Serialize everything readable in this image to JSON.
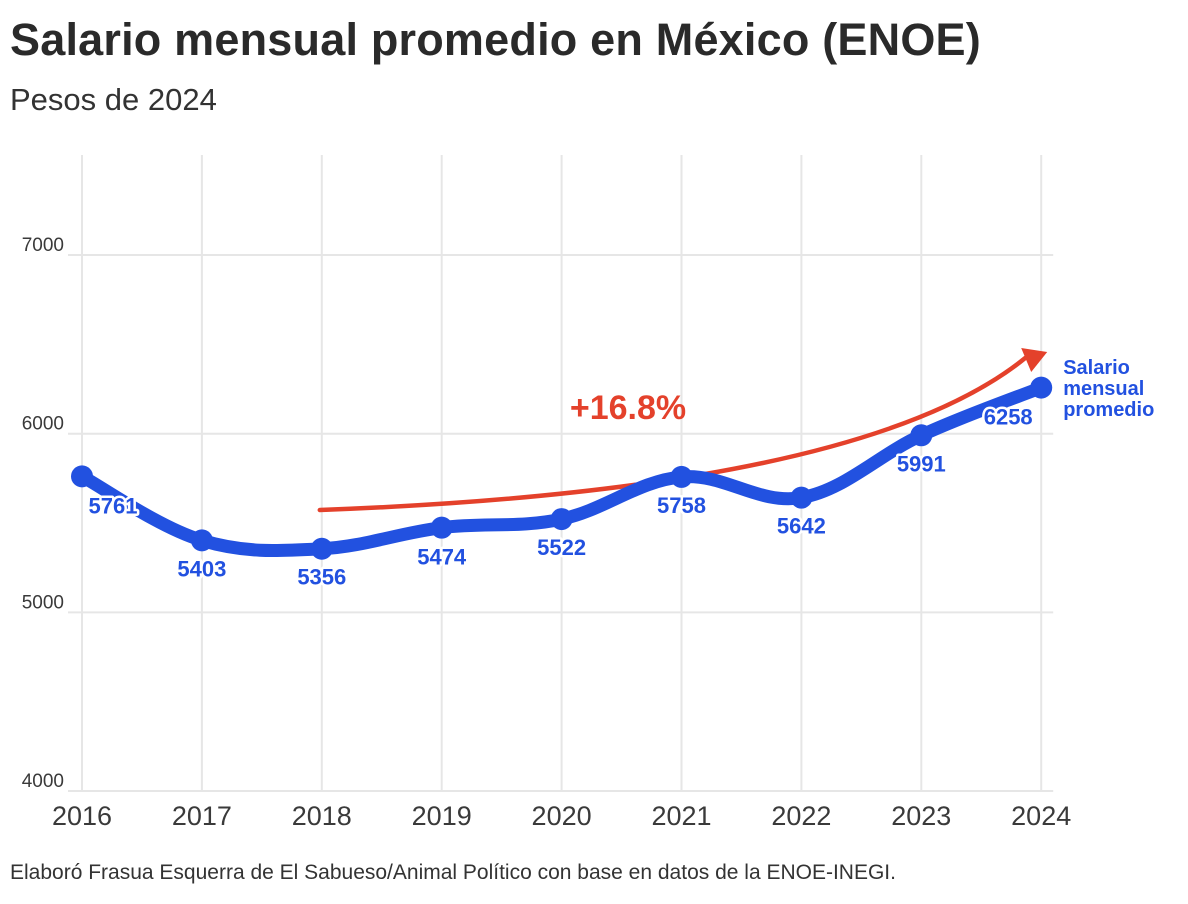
{
  "title": "Salario mensual promedio en México (ENOE)",
  "subtitle": "Pesos de 2024",
  "footer": "Elaboró Frasua Esquerra de El Sabueso/Animal Político con base en datos de la ENOE-INEGI.",
  "colors": {
    "series": "#2251e0",
    "annotation": "#e4412b",
    "grid": "#e6e6e6"
  },
  "chart_data": {
    "type": "line",
    "x": [
      "2016",
      "2017",
      "2018",
      "2019",
      "2020",
      "2021",
      "2022",
      "2023",
      "2024"
    ],
    "series": [
      {
        "name": "Salario mensual promedio",
        "name_lines": [
          "Salario",
          "mensual",
          "promedio"
        ],
        "values": [
          5761,
          5403,
          5356,
          5474,
          5522,
          5758,
          5642,
          5991,
          6258
        ],
        "labels": [
          "5761",
          "5403",
          "5356",
          "5474",
          "5522",
          "5758",
          "5642",
          "5991",
          "6258"
        ]
      }
    ],
    "ylim": [
      4000,
      7560
    ],
    "yticks": [
      4000,
      5000,
      6000,
      7000
    ],
    "ytick_labels": [
      "4000",
      "5000",
      "6000",
      "7000"
    ],
    "grid": true,
    "annotation": {
      "text": "+16.8%",
      "from_x": "2018",
      "to_x": "2024"
    }
  }
}
